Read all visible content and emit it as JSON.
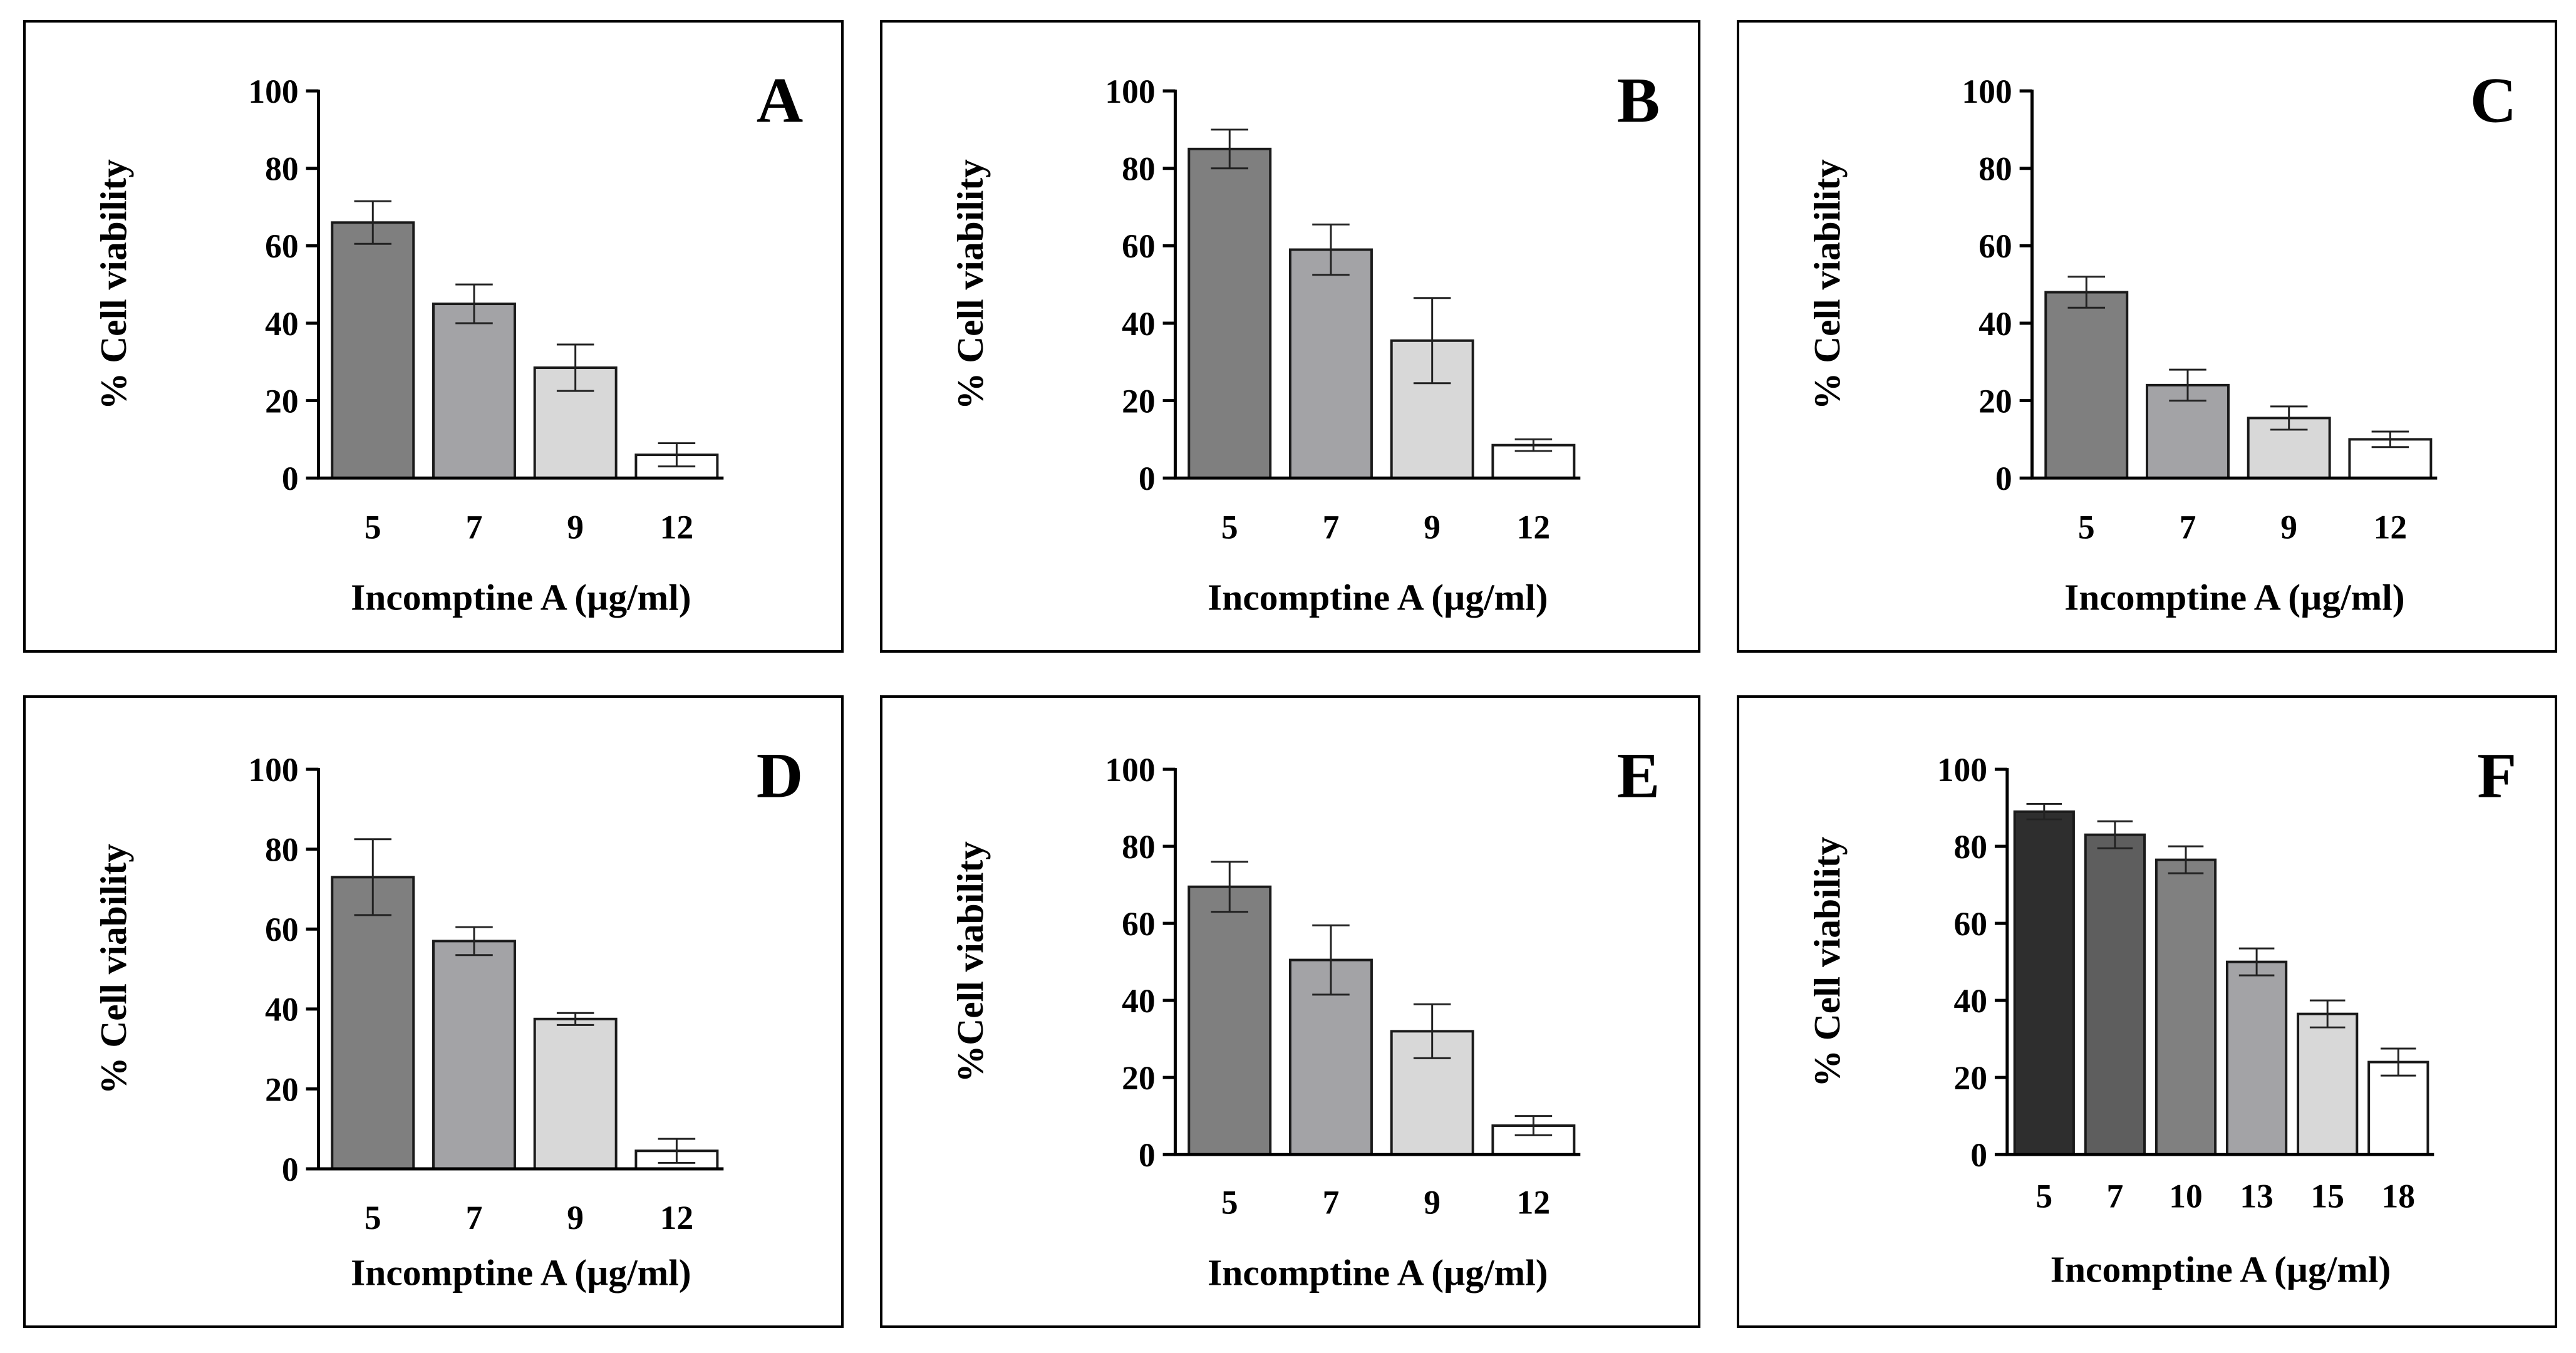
{
  "chart_data": [
    {
      "type": "bar",
      "panel_label": "A",
      "categories": [
        "5",
        "7",
        "9",
        "12"
      ],
      "values": [
        66,
        45,
        28.5,
        6
      ],
      "errors": [
        5.5,
        5,
        6,
        3
      ],
      "bar_colors": [
        "#7f7f7f",
        "#a3a3a6",
        "#d8d8d8",
        "#ffffff"
      ],
      "xlabel": "Incomptine A (µg/ml)",
      "ylabel": "% Cell viability",
      "ylim": [
        0,
        100
      ],
      "yticks": [
        "0",
        "20",
        "40",
        "60",
        "80",
        "100"
      ],
      "grid": false
    },
    {
      "type": "bar",
      "panel_label": "B",
      "categories": [
        "5",
        "7",
        "9",
        "12"
      ],
      "values": [
        85,
        59,
        35.5,
        8.5
      ],
      "errors": [
        5,
        6.5,
        11,
        1.5
      ],
      "bar_colors": [
        "#7f7f7f",
        "#a3a3a6",
        "#d8d8d8",
        "#ffffff"
      ],
      "xlabel": "Incomptine A (µg/ml)",
      "ylabel": "% Cell viability",
      "ylim": [
        0,
        100
      ],
      "yticks": [
        "0",
        "20",
        "40",
        "60",
        "80",
        "100"
      ],
      "grid": false
    },
    {
      "type": "bar",
      "panel_label": "C",
      "categories": [
        "5",
        "7",
        "9",
        "12"
      ],
      "values": [
        48,
        24,
        15.5,
        10
      ],
      "errors": [
        4,
        4,
        3,
        2
      ],
      "bar_colors": [
        "#7f7f7f",
        "#a3a3a6",
        "#d8d8d8",
        "#ffffff"
      ],
      "xlabel": "Incomptine A (µg/ml)",
      "ylabel": "% Cell viability",
      "ylim": [
        0,
        100
      ],
      "yticks": [
        "0",
        "20",
        "40",
        "60",
        "80",
        "100"
      ],
      "grid": false
    },
    {
      "type": "bar",
      "panel_label": "D",
      "categories": [
        "5",
        "7",
        "9",
        "12"
      ],
      "values": [
        73,
        57,
        37.5,
        4.5
      ],
      "errors": [
        9.5,
        3.5,
        1.5,
        3
      ],
      "bar_colors": [
        "#7f7f7f",
        "#a3a3a6",
        "#d8d8d8",
        "#ffffff"
      ],
      "xlabel": "Incomptine A (µg/ml)",
      "ylabel": "% Cell viability",
      "ylim": [
        0,
        100
      ],
      "yticks": [
        "0",
        "20",
        "40",
        "60",
        "80",
        "100"
      ],
      "grid": false
    },
    {
      "type": "bar",
      "panel_label": "E",
      "categories": [
        "5",
        "7",
        "9",
        "12"
      ],
      "values": [
        69.5,
        50.5,
        32,
        7.5
      ],
      "errors": [
        6.5,
        9,
        7,
        2.5
      ],
      "bar_colors": [
        "#7f7f7f",
        "#a3a3a6",
        "#d8d8d8",
        "#ffffff"
      ],
      "xlabel": "Incomptine A (µg/ml)",
      "ylabel": "%Cell viability",
      "ylim": [
        0,
        100
      ],
      "yticks": [
        "0",
        "20",
        "40",
        "60",
        "80",
        "100"
      ],
      "grid": false
    },
    {
      "type": "bar",
      "panel_label": "F",
      "categories": [
        "5",
        "7",
        "10",
        "13",
        "15",
        "18"
      ],
      "values": [
        89,
        83,
        76.5,
        50,
        36.5,
        24
      ],
      "errors": [
        2,
        3.5,
        3.5,
        3.5,
        3.5,
        3.5
      ],
      "bar_colors": [
        "#2e2e2e",
        "#5e5e5e",
        "#808080",
        "#a3a3a6",
        "#d8d8d8",
        "#ffffff"
      ],
      "xlabel": "Incomptine A (µg/ml)",
      "ylabel": "% Cell viability",
      "ylim": [
        0,
        100
      ],
      "yticks": [
        "0",
        "20",
        "40",
        "60",
        "80",
        "100"
      ],
      "grid": false
    }
  ]
}
